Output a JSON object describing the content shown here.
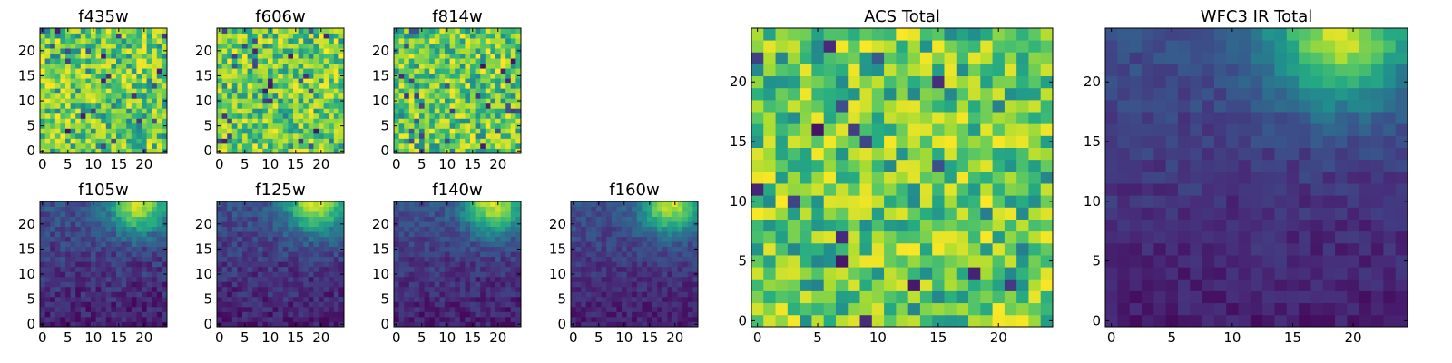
{
  "chart_data": [
    {
      "type": "heatmap",
      "title": "f435w",
      "shape": [
        25,
        25
      ],
      "xlim": [
        0,
        24
      ],
      "ylim": [
        0,
        24
      ],
      "xticks": [
        "0",
        "5",
        "10",
        "15",
        "20"
      ],
      "yticks": [
        "0",
        "5",
        "10",
        "15",
        "20"
      ],
      "colormap": "viridis",
      "pattern": "uniform"
    },
    {
      "type": "heatmap",
      "title": "f606w",
      "shape": [
        25,
        25
      ],
      "xlim": [
        0,
        24
      ],
      "ylim": [
        0,
        24
      ],
      "xticks": [
        "0",
        "5",
        "10",
        "15",
        "20"
      ],
      "yticks": [
        "0",
        "5",
        "10",
        "15",
        "20"
      ],
      "colormap": "viridis",
      "pattern": "uniform"
    },
    {
      "type": "heatmap",
      "title": "f814w",
      "shape": [
        25,
        25
      ],
      "xlim": [
        0,
        24
      ],
      "ylim": [
        0,
        24
      ],
      "xticks": [
        "0",
        "5",
        "10",
        "15",
        "20"
      ],
      "yticks": [
        "0",
        "5",
        "10",
        "15",
        "20"
      ],
      "colormap": "viridis",
      "pattern": "uniform"
    },
    {
      "type": "heatmap",
      "title": "f105w",
      "shape": [
        25,
        25
      ],
      "xlim": [
        0,
        24
      ],
      "ylim": [
        0,
        24
      ],
      "xticks": [
        "0",
        "5",
        "10",
        "15",
        "20"
      ],
      "yticks": [
        "0",
        "5",
        "10",
        "15",
        "20"
      ],
      "colormap": "viridis",
      "pattern": "peak",
      "peak": {
        "x": 19,
        "y": 24
      }
    },
    {
      "type": "heatmap",
      "title": "f125w",
      "shape": [
        25,
        25
      ],
      "xlim": [
        0,
        24
      ],
      "ylim": [
        0,
        24
      ],
      "xticks": [
        "0",
        "5",
        "10",
        "15",
        "20"
      ],
      "yticks": [
        "0",
        "5",
        "10",
        "15",
        "20"
      ],
      "colormap": "viridis",
      "pattern": "peak",
      "peak": {
        "x": 19,
        "y": 24
      }
    },
    {
      "type": "heatmap",
      "title": "f140w",
      "shape": [
        25,
        25
      ],
      "xlim": [
        0,
        24
      ],
      "ylim": [
        0,
        24
      ],
      "xticks": [
        "0",
        "5",
        "10",
        "15",
        "20"
      ],
      "yticks": [
        "0",
        "5",
        "10",
        "15",
        "20"
      ],
      "colormap": "viridis",
      "pattern": "peak",
      "peak": {
        "x": 19,
        "y": 24
      }
    },
    {
      "type": "heatmap",
      "title": "f160w",
      "shape": [
        25,
        25
      ],
      "xlim": [
        0,
        24
      ],
      "ylim": [
        0,
        24
      ],
      "xticks": [
        "0",
        "5",
        "10",
        "15",
        "20"
      ],
      "yticks": [
        "0",
        "5",
        "10",
        "15",
        "20"
      ],
      "colormap": "viridis",
      "pattern": "peak",
      "peak": {
        "x": 19,
        "y": 24
      }
    },
    {
      "type": "heatmap",
      "title": "ACS Total",
      "shape": [
        25,
        25
      ],
      "xlim": [
        0,
        24
      ],
      "ylim": [
        0,
        24
      ],
      "xticks": [
        "0",
        "5",
        "10",
        "15",
        "20"
      ],
      "yticks": [
        "0",
        "5",
        "10",
        "15",
        "20"
      ],
      "colormap": "viridis",
      "pattern": "uniform"
    },
    {
      "type": "heatmap",
      "title": "WFC3 IR Total",
      "shape": [
        25,
        25
      ],
      "xlim": [
        0,
        24
      ],
      "ylim": [
        0,
        24
      ],
      "xticks": [
        "0",
        "5",
        "10",
        "15",
        "20"
      ],
      "yticks": [
        "0",
        "5",
        "10",
        "15",
        "20"
      ],
      "colormap": "viridis",
      "pattern": "peak",
      "peak": {
        "x": 19,
        "y": 24
      }
    }
  ]
}
